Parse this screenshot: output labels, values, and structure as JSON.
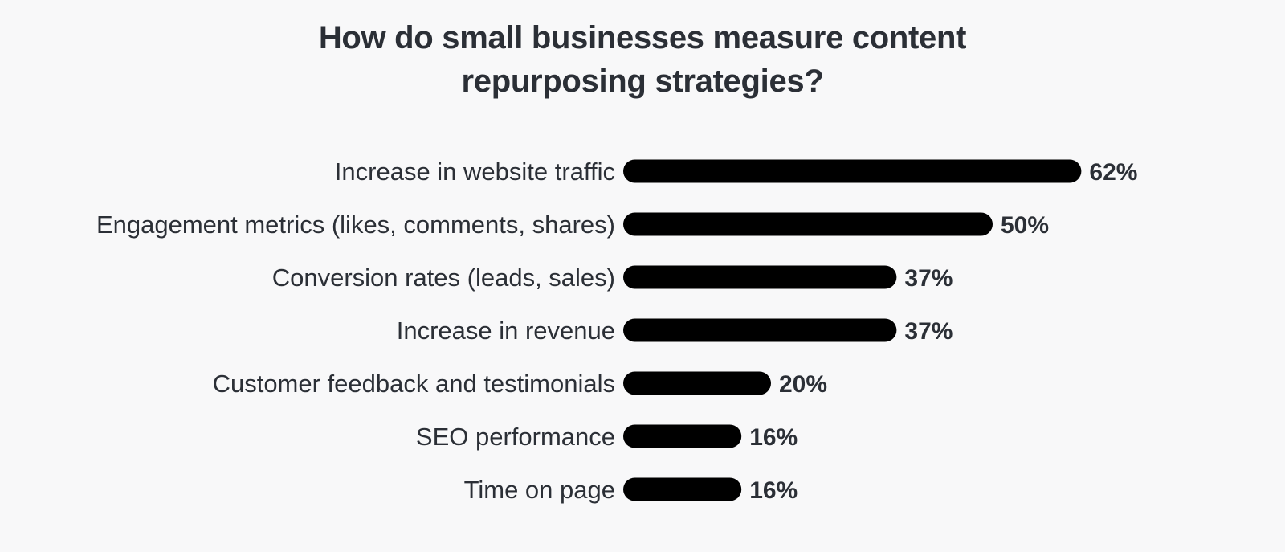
{
  "chart_data": {
    "type": "bar",
    "orientation": "horizontal",
    "title_lines": [
      "How do small businesses measure content",
      "repurposing strategies?"
    ],
    "categories": [
      "Increase in website traffic",
      "Engagement metrics (likes, comments, shares)",
      "Conversion rates (leads, sales)",
      "Increase in revenue",
      "Customer feedback and testimonials",
      "SEO performance",
      "Time on page"
    ],
    "values": [
      62,
      50,
      37,
      37,
      20,
      16,
      16
    ],
    "value_labels": [
      "62%",
      "50%",
      "37%",
      "37%",
      "20%",
      "16%",
      "16%"
    ],
    "unit": "%",
    "bar_color": "#000000",
    "grid": false,
    "legend": "none"
  }
}
